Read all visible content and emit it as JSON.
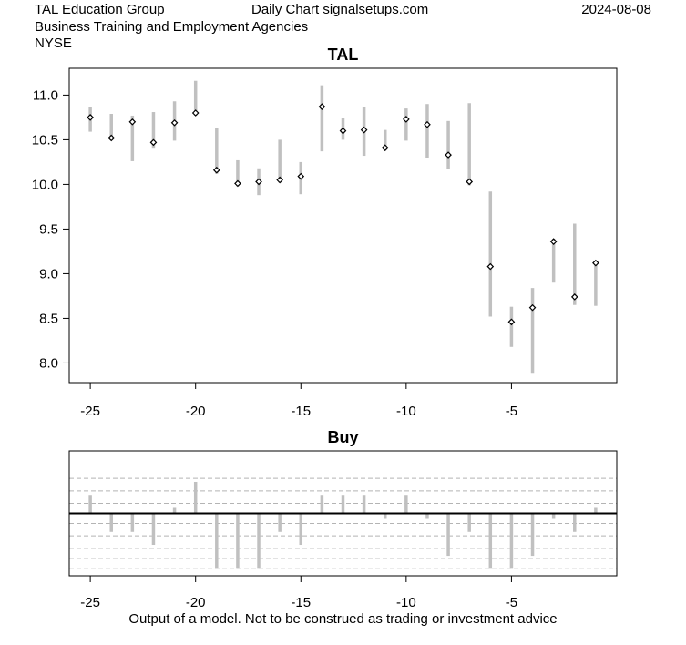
{
  "header": {
    "company": "TAL Education Group",
    "source": "Daily Chart signalsetups.com",
    "date": "2024-08-08",
    "industry": "Business Training and Employment Agencies",
    "exchange": "NYSE"
  },
  "footer": {
    "disclaimer": "Output of a model. Not to be construed as trading or investment advice"
  },
  "chart_data": [
    {
      "type": "ohlc",
      "title": "TAL",
      "xlabel": "",
      "ylabel": "",
      "xlim": [
        -26,
        0
      ],
      "ylim": [
        7.78,
        11.3
      ],
      "x_ticks": [
        -25,
        -20,
        -15,
        -10,
        -5
      ],
      "y_ticks": [
        8.0,
        8.5,
        9.0,
        9.5,
        10.0,
        10.5,
        11.0
      ],
      "x_tick_labels": [
        "-25",
        "-20",
        "-15",
        "-10",
        "-5"
      ],
      "y_tick_labels": [
        "8.0",
        "8.5",
        "9.0",
        "9.5",
        "10.0",
        "10.5",
        "11.0"
      ],
      "grid": false,
      "bar_color": "#c0c0c0",
      "series": [
        {
          "x": [
            -25,
            -24,
            -23,
            -22,
            -21,
            -20,
            -19,
            -18,
            -17,
            -16,
            -15,
            -14,
            -13,
            -12,
            -11,
            -10,
            -9,
            -8,
            -7,
            -6,
            -5,
            -4,
            -3,
            -2,
            -1
          ],
          "high": [
            10.87,
            10.79,
            10.77,
            10.81,
            10.93,
            11.16,
            10.63,
            10.27,
            10.18,
            10.5,
            10.25,
            11.11,
            10.74,
            10.87,
            10.61,
            10.85,
            10.9,
            10.71,
            10.91,
            9.92,
            8.63,
            8.84,
            9.39,
            9.56,
            9.13
          ],
          "low": [
            10.59,
            10.5,
            10.26,
            10.4,
            10.49,
            10.77,
            10.12,
            9.98,
            9.88,
            10.02,
            9.89,
            10.37,
            10.5,
            10.32,
            10.39,
            10.49,
            10.3,
            10.17,
            9.99,
            8.52,
            8.18,
            7.89,
            8.9,
            8.65,
            8.64
          ],
          "close": [
            10.75,
            10.52,
            10.7,
            10.47,
            10.69,
            10.8,
            10.16,
            10.01,
            10.03,
            10.05,
            10.09,
            10.87,
            10.6,
            10.61,
            10.41,
            10.73,
            10.67,
            10.33,
            10.03,
            9.08,
            8.46,
            8.62,
            9.36,
            8.74,
            9.12
          ]
        }
      ]
    },
    {
      "type": "bar",
      "title": "Buy",
      "xlabel": "",
      "ylabel": "",
      "xlim": [
        -26,
        0
      ],
      "ylim": [
        -1.25,
        1.25
      ],
      "x_ticks": [
        -25,
        -20,
        -15,
        -10,
        -5
      ],
      "x_tick_labels": [
        "-25",
        "-20",
        "-15",
        "-10",
        "-5"
      ],
      "y_grid": [
        -1.1,
        -0.9,
        -0.7,
        -0.45,
        -0.2,
        0.2,
        0.45,
        0.7,
        0.95,
        1.15
      ],
      "grid": true,
      "bar_color": "#c0c0c0",
      "x": [
        -25,
        -24,
        -23,
        -22,
        -21,
        -20,
        -19,
        -18,
        -17,
        -16,
        -15,
        -14,
        -13,
        -12,
        -11,
        -10,
        -9,
        -8,
        -7,
        -6,
        -5,
        -4,
        -3,
        -2,
        -1
      ],
      "values": [
        0.37,
        -0.37,
        -0.37,
        -0.63,
        0.11,
        0.63,
        -1.11,
        -1.11,
        -1.11,
        -0.37,
        -0.63,
        0.37,
        0.37,
        0.37,
        -0.11,
        0.37,
        -0.11,
        -0.85,
        -0.37,
        -1.11,
        -1.11,
        -0.85,
        -0.11,
        -0.37,
        0.11
      ]
    }
  ]
}
